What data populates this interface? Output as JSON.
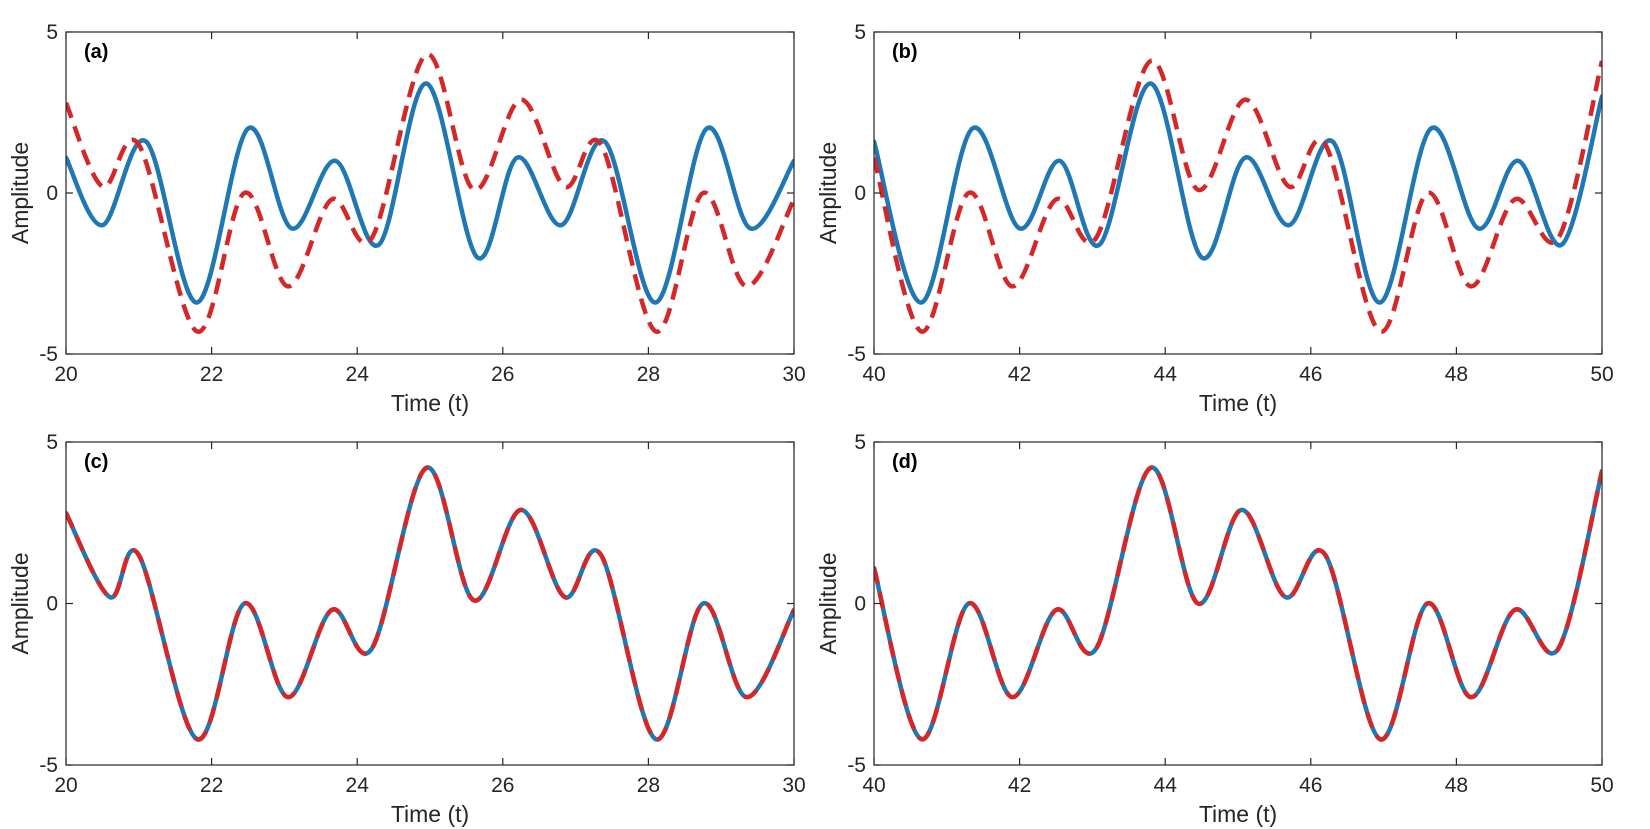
{
  "chart_data": [
    {
      "type": "line",
      "panel_label": "(a)",
      "xlabel": "Time (t)",
      "ylabel": "Amplitude",
      "xlim": [
        20,
        30
      ],
      "ylim": [
        -5,
        5
      ],
      "xticks": [
        "20",
        "22",
        "24",
        "26",
        "28",
        "30"
      ],
      "yticks": [
        "-5",
        "0",
        "5"
      ],
      "series": [
        {
          "name": "solid",
          "color": "#1f77b4",
          "style": "solid",
          "x": [
            20.0,
            20.5,
            21.1,
            21.8,
            22.5,
            23.1,
            23.7,
            24.3,
            24.95,
            25.65,
            26.2,
            26.8,
            27.4,
            28.1,
            28.8,
            29.4,
            30.0
          ],
          "y": [
            1.1,
            -1.0,
            1.6,
            -3.4,
            2.0,
            -1.1,
            1.0,
            -1.6,
            3.4,
            -2.0,
            1.1,
            -1.0,
            1.6,
            -3.4,
            2.0,
            -1.1,
            1.0
          ]
        },
        {
          "name": "dashed",
          "color": "#d62728",
          "style": "dashed",
          "x": [
            20.0,
            20.5,
            21.0,
            21.8,
            22.45,
            23.05,
            23.65,
            24.2,
            24.95,
            25.6,
            26.25,
            26.85,
            27.35,
            28.1,
            28.75,
            29.35,
            30.0
          ],
          "y": [
            2.8,
            0.2,
            1.5,
            -4.3,
            0.0,
            -2.9,
            -0.2,
            -1.4,
            4.3,
            0.1,
            2.9,
            0.2,
            1.5,
            -4.3,
            0.0,
            -2.9,
            -0.2
          ]
        }
      ]
    },
    {
      "type": "line",
      "panel_label": "(b)",
      "xlabel": "Time (t)",
      "ylabel": "Amplitude",
      "xlim": [
        40,
        50
      ],
      "ylim": [
        -5,
        5
      ],
      "xticks": [
        "40",
        "42",
        "44",
        "46",
        "48",
        "50"
      ],
      "yticks": [
        "-5",
        "0",
        "5"
      ],
      "series": [
        {
          "name": "solid",
          "color": "#1f77b4",
          "style": "solid",
          "x": [
            40.0,
            40.65,
            41.35,
            42.0,
            42.55,
            43.1,
            43.8,
            44.5,
            45.1,
            45.7,
            46.3,
            46.95,
            47.65,
            48.3,
            48.85,
            49.45,
            50.0
          ],
          "y": [
            1.6,
            -3.4,
            2.0,
            -1.1,
            1.0,
            -1.6,
            3.4,
            -2.0,
            1.1,
            -1.0,
            1.6,
            -3.4,
            2.0,
            -1.1,
            1.0,
            -1.6,
            3.0
          ]
        },
        {
          "name": "dashed",
          "color": "#d62728",
          "style": "dashed",
          "x": [
            40.0,
            40.65,
            41.3,
            41.9,
            42.5,
            43.05,
            43.8,
            44.45,
            45.1,
            45.7,
            46.2,
            46.95,
            47.6,
            48.2,
            48.8,
            49.4,
            50.0
          ],
          "y": [
            1.1,
            -4.3,
            0.0,
            -2.9,
            -0.2,
            -1.4,
            4.1,
            0.1,
            2.9,
            0.2,
            1.5,
            -4.3,
            0.0,
            -2.9,
            -0.2,
            -1.4,
            4.1
          ]
        }
      ]
    },
    {
      "type": "line",
      "panel_label": "(c)",
      "xlabel": "Time (t)",
      "ylabel": "Amplitude",
      "xlim": [
        20,
        30
      ],
      "ylim": [
        -5,
        5
      ],
      "xticks": [
        "20",
        "22",
        "24",
        "26",
        "28",
        "30"
      ],
      "yticks": [
        "-5",
        "0",
        "5"
      ],
      "series": [
        {
          "name": "solid",
          "color": "#1f77b4",
          "style": "solid",
          "x": [
            20.0,
            20.6,
            21.0,
            21.8,
            22.45,
            23.05,
            23.65,
            24.2,
            24.95,
            25.6,
            26.25,
            26.85,
            27.35,
            28.1,
            28.75,
            29.35,
            30.0
          ],
          "y": [
            2.8,
            0.2,
            1.5,
            -4.2,
            0.0,
            -2.9,
            -0.2,
            -1.4,
            4.2,
            0.1,
            2.9,
            0.2,
            1.5,
            -4.2,
            0.0,
            -2.9,
            -0.2
          ]
        },
        {
          "name": "dashed",
          "color": "#d62728",
          "style": "dashed",
          "x": [
            20.0,
            20.6,
            21.0,
            21.8,
            22.45,
            23.05,
            23.65,
            24.2,
            24.95,
            25.6,
            26.25,
            26.85,
            27.35,
            28.1,
            28.75,
            29.35,
            30.0
          ],
          "y": [
            2.8,
            0.2,
            1.5,
            -4.2,
            0.0,
            -2.9,
            -0.2,
            -1.4,
            4.2,
            0.1,
            2.9,
            0.2,
            1.5,
            -4.2,
            0.0,
            -2.9,
            -0.2
          ]
        }
      ]
    },
    {
      "type": "line",
      "panel_label": "(d)",
      "xlabel": "Time (t)",
      "ylabel": "Amplitude",
      "xlim": [
        40,
        50
      ],
      "ylim": [
        -5,
        5
      ],
      "xticks": [
        "40",
        "42",
        "44",
        "46",
        "48",
        "50"
      ],
      "yticks": [
        "-5",
        "0",
        "5"
      ],
      "series": [
        {
          "name": "solid",
          "color": "#1f77b4",
          "style": "solid",
          "x": [
            40.0,
            40.65,
            41.3,
            41.9,
            42.5,
            43.05,
            43.8,
            44.45,
            45.05,
            45.65,
            46.2,
            46.95,
            47.6,
            48.2,
            48.8,
            49.4,
            50.0
          ],
          "y": [
            1.1,
            -4.2,
            0.0,
            -2.9,
            -0.2,
            -1.4,
            4.2,
            0.0,
            2.9,
            0.2,
            1.5,
            -4.2,
            0.0,
            -2.9,
            -0.2,
            -1.4,
            4.1
          ]
        },
        {
          "name": "dashed",
          "color": "#d62728",
          "style": "dashed",
          "x": [
            40.0,
            40.65,
            41.3,
            41.9,
            42.5,
            43.05,
            43.8,
            44.45,
            45.05,
            45.65,
            46.2,
            46.95,
            47.6,
            48.2,
            48.8,
            49.4,
            50.0
          ],
          "y": [
            1.1,
            -4.2,
            0.0,
            -2.9,
            -0.2,
            -1.4,
            4.2,
            0.0,
            2.9,
            0.2,
            1.5,
            -4.2,
            0.0,
            -2.9,
            -0.2,
            -1.4,
            4.1
          ]
        }
      ]
    }
  ]
}
